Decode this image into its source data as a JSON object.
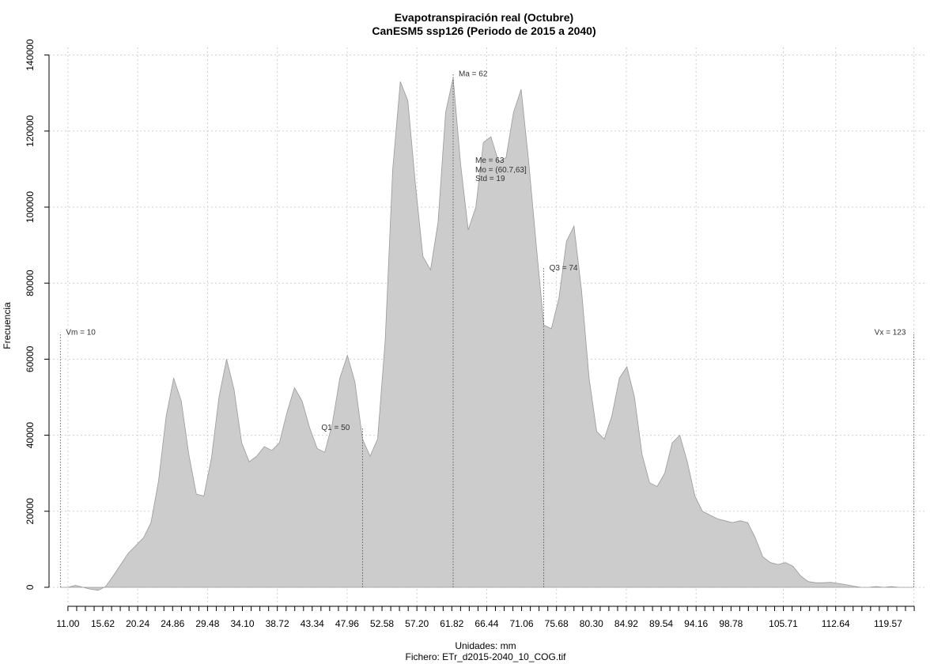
{
  "chart_data": {
    "type": "area",
    "title": "Evapotranspiración real (Octubre)",
    "subtitle": "CanESM5 ssp126 (Periodo de 2015 a 2040)",
    "xlabel": "Unidades: mm",
    "ylabel": "Frecuencia",
    "footer": "Fichero: ETr_d2015-2040_10_COG.tif",
    "xlim": [
      8.5,
      124.5
    ],
    "ylim": [
      -5000,
      142000
    ],
    "grid": true,
    "fill_color": "#cccccc",
    "line_color": "#999999",
    "y_ticks": [
      0,
      20000,
      40000,
      60000,
      80000,
      100000,
      120000,
      140000
    ],
    "y_tick_labels": [
      "0",
      "20000",
      "40000",
      "60000",
      "80000",
      "100000",
      "120000",
      "140000"
    ],
    "x_tick_labels": [
      "11.00",
      "15.62",
      "20.24",
      "24.86",
      "29.48",
      "34.10",
      "38.72",
      "43.34",
      "47.96",
      "52.58",
      "57.20",
      "61.82",
      "66.44",
      "71.06",
      "75.68",
      "80.30",
      "84.92",
      "89.54",
      "94.16",
      "98.78",
      "105.71",
      "112.64",
      "119.57"
    ],
    "x_ticks": [
      11.0,
      15.62,
      20.24,
      24.86,
      29.48,
      34.1,
      38.72,
      43.34,
      47.96,
      52.58,
      57.2,
      61.82,
      66.44,
      71.06,
      75.68,
      80.3,
      84.92,
      89.54,
      94.16,
      98.78,
      105.71,
      112.64,
      119.57
    ],
    "minor_ticks": [
      12.16,
      13.31,
      14.47,
      16.78,
      17.93,
      19.09,
      21.4,
      22.55,
      23.71,
      26.02,
      27.17,
      28.33,
      30.64,
      31.79,
      32.95,
      35.26,
      36.41,
      37.57,
      39.88,
      41.03,
      42.19,
      44.5,
      45.65,
      46.81,
      49.12,
      50.27,
      51.43,
      53.74,
      54.89,
      56.05,
      58.36,
      59.51,
      60.67,
      62.98,
      64.13,
      65.29,
      67.6,
      68.75,
      69.91,
      72.22,
      73.37,
      74.53,
      76.84,
      77.99,
      79.15,
      81.46,
      82.61,
      83.77,
      86.08,
      87.23,
      88.39,
      90.7,
      91.85,
      93.01,
      95.32,
      96.47,
      97.63,
      99.94,
      101.09,
      102.25,
      103.4,
      104.56,
      106.87,
      108.02,
      109.18,
      110.33,
      111.49,
      113.8,
      114.95,
      116.11,
      117.26,
      118.42,
      120.73,
      121.88,
      123.04
    ],
    "x_grid": [
      11.0,
      20.24,
      29.48,
      38.72,
      47.96,
      57.2,
      66.44,
      75.68,
      84.92,
      94.16,
      105.71,
      112.64,
      123.0
    ],
    "series": [
      {
        "x": [
          10.0,
          11.0,
          12.0,
          13.0,
          14.0,
          15.0,
          16.0,
          17.0,
          18.0,
          19.0,
          20.0,
          21.0,
          22.0,
          23.0,
          24.0,
          25.0,
          26.0,
          27.0,
          28.0,
          29.0,
          30.0,
          31.0,
          32.0,
          33.0,
          34.0,
          35.0,
          36.0,
          37.0,
          38.0,
          39.0,
          40.0,
          41.0,
          42.0,
          43.0,
          44.0,
          45.0,
          46.0,
          47.0,
          48.0,
          49.0,
          50.0,
          51.0,
          52.0,
          53.0,
          54.0,
          55.0,
          56.0,
          57.0,
          58.0,
          59.0,
          60.0,
          61.0,
          62.0,
          63.0,
          64.0,
          65.0,
          66.0,
          67.0,
          68.0,
          69.0,
          70.0,
          71.0,
          72.0,
          73.0,
          74.0,
          75.0,
          76.0,
          77.0,
          78.0,
          79.0,
          80.0,
          81.0,
          82.0,
          83.0,
          84.0,
          85.0,
          86.0,
          87.0,
          88.0,
          89.0,
          90.0,
          91.0,
          92.0,
          93.0,
          94.0,
          95.0,
          96.0,
          97.0,
          98.0,
          99.0,
          100.0,
          101.0,
          102.0,
          103.0,
          104.0,
          105.0,
          106.0,
          107.0,
          108.0,
          109.0,
          110.0,
          111.0,
          112.0,
          113.0,
          114.0,
          115.0,
          116.0,
          117.0,
          118.0,
          119.0,
          120.0,
          121.0,
          122.0,
          123.0
        ],
        "values": [
          0,
          0,
          500,
          0,
          -500,
          -800,
          200,
          3000,
          6000,
          9000,
          11000,
          13000,
          17000,
          28000,
          45000,
          55000,
          49000,
          35000,
          24500,
          24000,
          34000,
          50000,
          60000,
          52000,
          38000,
          33000,
          34500,
          37000,
          36000,
          38000,
          46000,
          52500,
          49000,
          42000,
          36500,
          35500,
          43000,
          55000,
          61000,
          54000,
          39000,
          34500,
          39000,
          65000,
          110000,
          133000,
          128000,
          106000,
          87000,
          83500,
          96000,
          125000,
          134000,
          111000,
          94000,
          100000,
          117000,
          118500,
          112000,
          113000,
          125000,
          131000,
          112000,
          90000,
          69000,
          68000,
          76000,
          91000,
          95000,
          78000,
          55000,
          41000,
          39000,
          45000,
          55000,
          58000,
          50000,
          35000,
          27500,
          26500,
          30000,
          38000,
          40000,
          33000,
          24000,
          20000,
          19000,
          18000,
          17500,
          17000,
          17500,
          17000,
          13000,
          8000,
          6500,
          6000,
          6500,
          5500,
          3000,
          1500,
          1200,
          1200,
          1300,
          1000,
          700,
          300,
          0,
          0,
          200,
          0,
          200,
          0,
          0,
          0
        ]
      }
    ],
    "markers": [
      {
        "x": 10.0,
        "label": "Vm = 10",
        "ymax": 67000
      },
      {
        "x": 123.0,
        "label": "Vx = 123",
        "ymax": 67000
      },
      {
        "x": 50.0,
        "label": "Q1 = 50",
        "ymax": 42000
      },
      {
        "x": 62.0,
        "label": "Ma = 62",
        "ymax": 135000
      },
      {
        "x": 74.0,
        "label": "Q3 = 74",
        "ymax": 84000
      }
    ],
    "stats_text": [
      "Me = 63",
      "Mo = (60.7,63]",
      "Std = 19"
    ]
  }
}
